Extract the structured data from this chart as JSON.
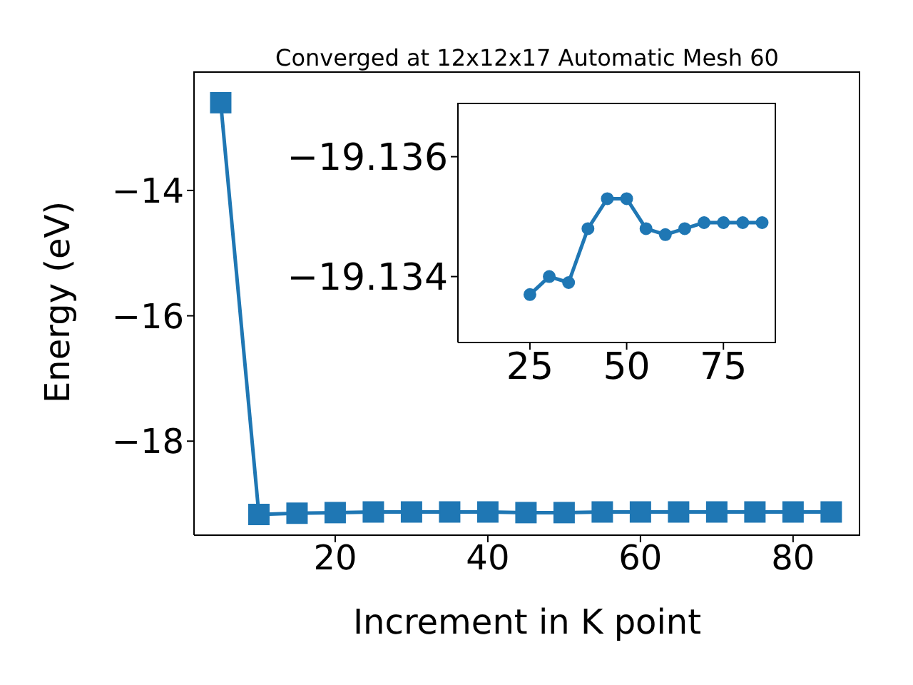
{
  "chart_data": [
    {
      "type": "line",
      "title": "Converged at 12x12x17 Automatic Mesh 60",
      "xlabel": "Increment in K point",
      "ylabel": "Energy (eV)",
      "x": [
        5,
        10,
        15,
        20,
        25,
        30,
        35,
        40,
        45,
        50,
        55,
        60,
        65,
        70,
        75,
        80,
        85
      ],
      "series": [
        {
          "color": "#1f77b4",
          "values": [
            -12.6,
            -19.17,
            -19.15,
            -19.14,
            -19.13,
            -19.13,
            -19.13,
            -19.13,
            -19.14,
            -19.14,
            -19.13,
            -19.13,
            -19.13,
            -19.13,
            -19.13,
            -19.13,
            -19.13
          ]
        }
      ],
      "xlim": [
        1.5,
        88.8
      ],
      "ylim": [
        -19.5,
        -12.1
      ],
      "xticks": [
        20,
        40,
        60,
        80
      ],
      "yticks": [
        {
          "value": -14,
          "label": "−14"
        },
        {
          "value": -16,
          "label": "−16"
        },
        {
          "value": -18,
          "label": "−18"
        }
      ],
      "marker": "square",
      "grid": false,
      "legend": false
    },
    {
      "type": "line",
      "x": [
        25,
        30,
        35,
        40,
        45,
        50,
        55,
        60,
        65,
        70,
        75,
        80,
        85
      ],
      "series": [
        {
          "color": "#1f77b4",
          "values": [
            -19.1337,
            -19.134,
            -19.1339,
            -19.1348,
            -19.1353,
            -19.1353,
            -19.1348,
            -19.1347,
            -19.1348,
            -19.1349,
            -19.1349,
            -19.1349,
            -19.1349
          ]
        }
      ],
      "xlim": [
        6.4,
        88.6
      ],
      "ylim": [
        -19.1329,
        -19.1369
      ],
      "xticks": [
        25,
        50,
        75
      ],
      "yticks": [
        {
          "value": -19.136,
          "label": "−19.136"
        },
        {
          "value": -19.134,
          "label": "−19.134"
        }
      ],
      "marker": "circle",
      "grid": false,
      "legend": false
    }
  ]
}
